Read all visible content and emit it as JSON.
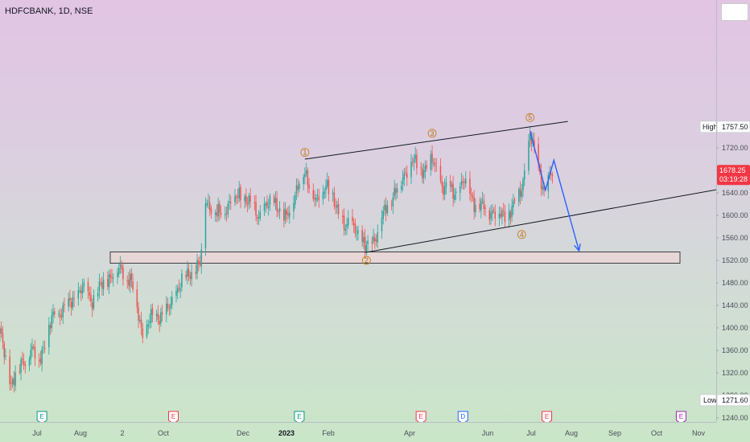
{
  "symbol_title": "HDFCBANK, 1D, NSE",
  "colors": {
    "up": "#26a69a",
    "down": "#ef5350",
    "projection": "#2962ff",
    "trendline": "#131722",
    "wave_label": "#c8801e",
    "zone_fill": "#f6d4d6",
    "price_tag": "#f23645"
  },
  "chart_data": {
    "type": "candlestick",
    "title": "HDFCBANK, 1D, NSE",
    "ylim": [
      1220,
      1800
    ],
    "y_ticks": [
      1240,
      1280,
      1320,
      1360,
      1400,
      1440,
      1480,
      1520,
      1560,
      1600,
      1640,
      1680,
      1720
    ],
    "y_tick_labels": [
      "1240.00",
      "1280.00",
      "1320.00",
      "1360.00",
      "1400.00",
      "1440.00",
      "1480.00",
      "1520.00",
      "1560.00",
      "1600.00",
      "1640.00",
      "1680.00",
      "1720.00"
    ],
    "x_tick_labels": [
      "Jul",
      "Aug",
      "2",
      "Oct",
      "Dec",
      "2023",
      "Feb",
      "Apr",
      "Jun",
      "Jul",
      "Aug",
      "Sep",
      "Oct",
      "Nov"
    ],
    "price_waypoints": [
      [
        "2022-06-20",
        1390
      ],
      [
        "2022-06-28",
        1300
      ],
      [
        "2022-07-05",
        1335
      ],
      [
        "2022-07-12",
        1360
      ],
      [
        "2022-07-18",
        1345
      ],
      [
        "2022-07-28",
        1420
      ],
      [
        "2022-08-08",
        1440
      ],
      [
        "2022-08-18",
        1470
      ],
      [
        "2022-08-25",
        1450
      ],
      [
        "2022-09-05",
        1490
      ],
      [
        "2022-09-15",
        1505
      ],
      [
        "2022-09-22",
        1480
      ],
      [
        "2022-09-30",
        1390
      ],
      [
        "2022-10-07",
        1420
      ],
      [
        "2022-10-17",
        1425
      ],
      [
        "2022-10-25",
        1470
      ],
      [
        "2022-11-03",
        1500
      ],
      [
        "2022-11-10",
        1510
      ],
      [
        "2022-11-14",
        1630
      ],
      [
        "2022-11-22",
        1600
      ],
      [
        "2022-12-01",
        1620
      ],
      [
        "2022-12-08",
        1640
      ],
      [
        "2022-12-15",
        1620
      ],
      [
        "2022-12-23",
        1600
      ],
      [
        "2023-01-02",
        1630
      ],
      [
        "2023-01-09",
        1590
      ],
      [
        "2023-01-16",
        1630
      ],
      [
        "2023-01-24",
        1680
      ],
      [
        "2023-02-01",
        1620
      ],
      [
        "2023-02-08",
        1660
      ],
      [
        "2023-02-14",
        1620
      ],
      [
        "2023-02-22",
        1580
      ],
      [
        "2023-03-01",
        1580
      ],
      [
        "2023-03-08",
        1540
      ],
      [
        "2023-03-16",
        1565
      ],
      [
        "2023-03-24",
        1620
      ],
      [
        "2023-04-03",
        1660
      ],
      [
        "2023-04-10",
        1700
      ],
      [
        "2023-04-17",
        1680
      ],
      [
        "2023-04-25",
        1695
      ],
      [
        "2023-05-03",
        1650
      ],
      [
        "2023-05-11",
        1640
      ],
      [
        "2023-05-18",
        1660
      ],
      [
        "2023-05-26",
        1620
      ],
      [
        "2023-06-05",
        1610
      ],
      [
        "2023-06-13",
        1600
      ],
      [
        "2023-06-21",
        1610
      ],
      [
        "2023-06-28",
        1650
      ],
      [
        "2023-07-04",
        1740
      ],
      [
        "2023-07-10",
        1690
      ],
      [
        "2023-07-14",
        1640
      ],
      [
        "2023-07-20",
        1678
      ]
    ],
    "high_label": "High",
    "high_value": "1757.50",
    "low_label": "Low",
    "low_value": "1271.60",
    "last_price": "1678.25",
    "countdown": "03:19:28",
    "support_zone": [
      1515,
      1535
    ],
    "upper_trendline": [
      [
        "2023-01-24",
        1700
      ],
      [
        "2023-07-31",
        1767
      ]
    ],
    "lower_trendline": [
      [
        "2023-03-08",
        1534
      ],
      [
        "2023-11-15",
        1646
      ]
    ],
    "projection_path": [
      [
        "2023-07-04",
        1750
      ],
      [
        "2023-07-15",
        1645
      ],
      [
        "2023-07-21",
        1698
      ],
      [
        "2023-08-08",
        1537
      ]
    ],
    "wave_labels": [
      {
        "label": "1",
        "date": "2023-01-24",
        "price": 1712
      },
      {
        "label": "2",
        "date": "2023-03-09",
        "price": 1520
      },
      {
        "label": "3",
        "date": "2023-04-25",
        "price": 1746
      },
      {
        "label": "4",
        "date": "2023-06-28",
        "price": 1566
      },
      {
        "label": "5",
        "date": "2023-07-04",
        "price": 1774
      }
    ],
    "events": [
      {
        "label": "E",
        "date": "2022-07-20",
        "color": "#089981"
      },
      {
        "label": "E",
        "date": "2022-10-22",
        "color": "#f23645"
      },
      {
        "label": "E",
        "date": "2023-01-20",
        "color": "#089981"
      },
      {
        "label": "E",
        "date": "2023-04-17",
        "color": "#f23645"
      },
      {
        "label": "D",
        "date": "2023-05-17",
        "color": "#2962ff"
      },
      {
        "label": "E",
        "date": "2023-07-16",
        "color": "#f23645"
      },
      {
        "label": "E",
        "date": "2023-10-20",
        "color": "#9c27b0"
      }
    ]
  }
}
